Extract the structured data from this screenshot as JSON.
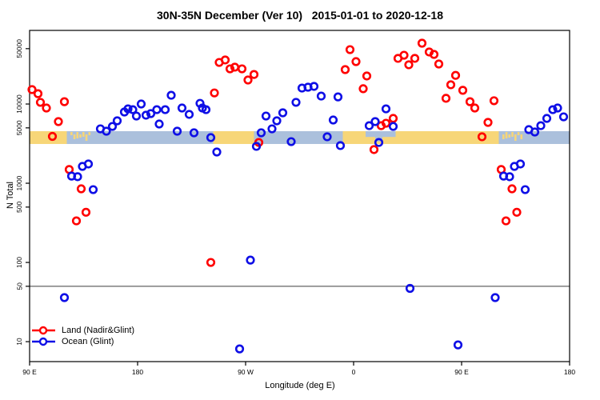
{
  "chart_data": {
    "type": "scatter",
    "title": "30N-35N December (Ver 10)   2015-01-01 to 2020-12-18",
    "xlabel": "Longitude (deg E)",
    "ylabel": "N Total",
    "background_color": "#ffffff",
    "x_axis": {
      "range": [
        90,
        540
      ],
      "ticks": [
        {
          "value": 90,
          "label": "90 E"
        },
        {
          "value": 180,
          "label": "180"
        },
        {
          "value": 270,
          "label": "90 W"
        },
        {
          "value": 360,
          "label": "0"
        },
        {
          "value": 450,
          "label": "90 E"
        },
        {
          "value": 540,
          "label": "180"
        }
      ]
    },
    "y_axis": {
      "scale": "log",
      "range": [
        5.6,
        85000
      ],
      "ticks": [
        {
          "value": 10,
          "label": "10"
        },
        {
          "value": 50,
          "label": "50"
        },
        {
          "value": 100,
          "label": "100"
        },
        {
          "value": 500,
          "label": "500"
        },
        {
          "value": 1000,
          "label": "1000"
        },
        {
          "value": 5000,
          "label": "5000"
        },
        {
          "value": 10000,
          "label": "10000"
        },
        {
          "value": 50000,
          "label": "50000"
        }
      ]
    },
    "reference_line": {
      "value": 50,
      "color": "#3c3c3c"
    },
    "coast_band": {
      "value_top": 4540,
      "value_bottom": 3130,
      "land_color": "#F7D678",
      "ocean_color": "#ABC0DC",
      "segments": [
        {
          "from": 90,
          "to": 121,
          "type": "land"
        },
        {
          "from": 121,
          "to": 141,
          "type": "islands"
        },
        {
          "from": 141,
          "to": 243,
          "type": "ocean"
        },
        {
          "from": 243,
          "to": 277,
          "type": "land"
        },
        {
          "from": 277,
          "to": 351,
          "type": "ocean"
        },
        {
          "from": 351,
          "to": 481,
          "type": "land"
        },
        {
          "from": 481,
          "to": 501,
          "type": "islands"
        },
        {
          "from": 501,
          "to": 540,
          "type": "ocean"
        }
      ],
      "ocean_patches": [
        {
          "from": 370,
          "to": 395,
          "depth": 0.45
        },
        {
          "from": 378,
          "to": 384,
          "depth": 0.8
        }
      ],
      "island_speckles": [
        124,
        126.5,
        129,
        131.5,
        134,
        136.5,
        139,
        484,
        486.5,
        489,
        491.5,
        494,
        496.5,
        499
      ]
    },
    "legend": {
      "position": "bottom-left"
    },
    "series": [
      {
        "name": "Land (Nadir&Glint)",
        "color": "#FF0000",
        "points": [
          [
            92,
            15200
          ],
          [
            97,
            13500
          ],
          [
            99,
            10500
          ],
          [
            104,
            8900
          ],
          [
            109,
            3900
          ],
          [
            114,
            6000
          ],
          [
            119,
            10700
          ],
          [
            123,
            1490
          ],
          [
            129,
            335
          ],
          [
            133,
            850
          ],
          [
            137,
            430
          ],
          [
            241,
            100
          ],
          [
            244,
            13800
          ],
          [
            248,
            33500
          ],
          [
            253,
            36000
          ],
          [
            257,
            27800
          ],
          [
            261,
            29200
          ],
          [
            267,
            27800
          ],
          [
            272,
            20100
          ],
          [
            277,
            23600
          ],
          [
            281,
            3270
          ],
          [
            353,
            27200
          ],
          [
            357,
            48600
          ],
          [
            362,
            34300
          ],
          [
            368,
            15600
          ],
          [
            371,
            22600
          ],
          [
            377,
            2660
          ],
          [
            383,
            5330
          ],
          [
            387,
            5720
          ],
          [
            393,
            6580
          ],
          [
            397,
            37700
          ],
          [
            402,
            41300
          ],
          [
            406,
            31300
          ],
          [
            411,
            37700
          ],
          [
            417,
            58600
          ],
          [
            423,
            45400
          ],
          [
            427,
            42300
          ],
          [
            431,
            32000
          ],
          [
            437,
            11800
          ],
          [
            441,
            17500
          ],
          [
            445,
            23000
          ],
          [
            451,
            14900
          ],
          [
            457,
            10700
          ],
          [
            461,
            8900
          ],
          [
            467,
            3860
          ],
          [
            472,
            5860
          ],
          [
            477,
            11000
          ],
          [
            483,
            1490
          ],
          [
            487,
            335
          ],
          [
            492,
            850
          ],
          [
            496,
            430
          ]
        ]
      },
      {
        "name": "Ocean (Glint)",
        "color": "#0F0FE6",
        "points": [
          [
            119,
            36
          ],
          [
            125,
            1230
          ],
          [
            130,
            1210
          ],
          [
            134,
            1630
          ],
          [
            139,
            1750
          ],
          [
            143,
            830
          ],
          [
            149,
            4860
          ],
          [
            154,
            4540
          ],
          [
            159,
            5210
          ],
          [
            163,
            6140
          ],
          [
            169,
            7930
          ],
          [
            172,
            8690
          ],
          [
            176,
            8490
          ],
          [
            179,
            7050
          ],
          [
            183,
            10000
          ],
          [
            187,
            7230
          ],
          [
            191,
            7570
          ],
          [
            196,
            8490
          ],
          [
            198,
            5590
          ],
          [
            203,
            8490
          ],
          [
            208,
            12900
          ],
          [
            213,
            4540
          ],
          [
            217,
            8900
          ],
          [
            223,
            7400
          ],
          [
            227,
            4330
          ],
          [
            232,
            10200
          ],
          [
            234,
            8900
          ],
          [
            237,
            8490
          ],
          [
            241,
            3770
          ],
          [
            246,
            2480
          ],
          [
            265,
            8.1
          ],
          [
            274,
            107
          ],
          [
            279,
            2920
          ],
          [
            283,
            4330
          ],
          [
            287,
            7050
          ],
          [
            292,
            4860
          ],
          [
            296,
            6140
          ],
          [
            301,
            7750
          ],
          [
            308,
            3350
          ],
          [
            312,
            10500
          ],
          [
            317,
            15900
          ],
          [
            322,
            16300
          ],
          [
            327,
            16700
          ],
          [
            333,
            12600
          ],
          [
            338,
            3860
          ],
          [
            343,
            6280
          ],
          [
            347,
            12300
          ],
          [
            349,
            2990
          ],
          [
            373,
            5330
          ],
          [
            378,
            6000
          ],
          [
            381,
            3270
          ],
          [
            387,
            8690
          ],
          [
            393,
            5210
          ],
          [
            407,
            47
          ],
          [
            447,
            9.1
          ],
          [
            478,
            36
          ],
          [
            485,
            1230
          ],
          [
            490,
            1210
          ],
          [
            494,
            1630
          ],
          [
            499,
            1750
          ],
          [
            503,
            830
          ],
          [
            506,
            4750
          ],
          [
            511,
            4430
          ],
          [
            516,
            5330
          ],
          [
            521,
            6580
          ],
          [
            526,
            8490
          ],
          [
            530,
            8900
          ],
          [
            535,
            6890
          ]
        ]
      }
    ]
  }
}
